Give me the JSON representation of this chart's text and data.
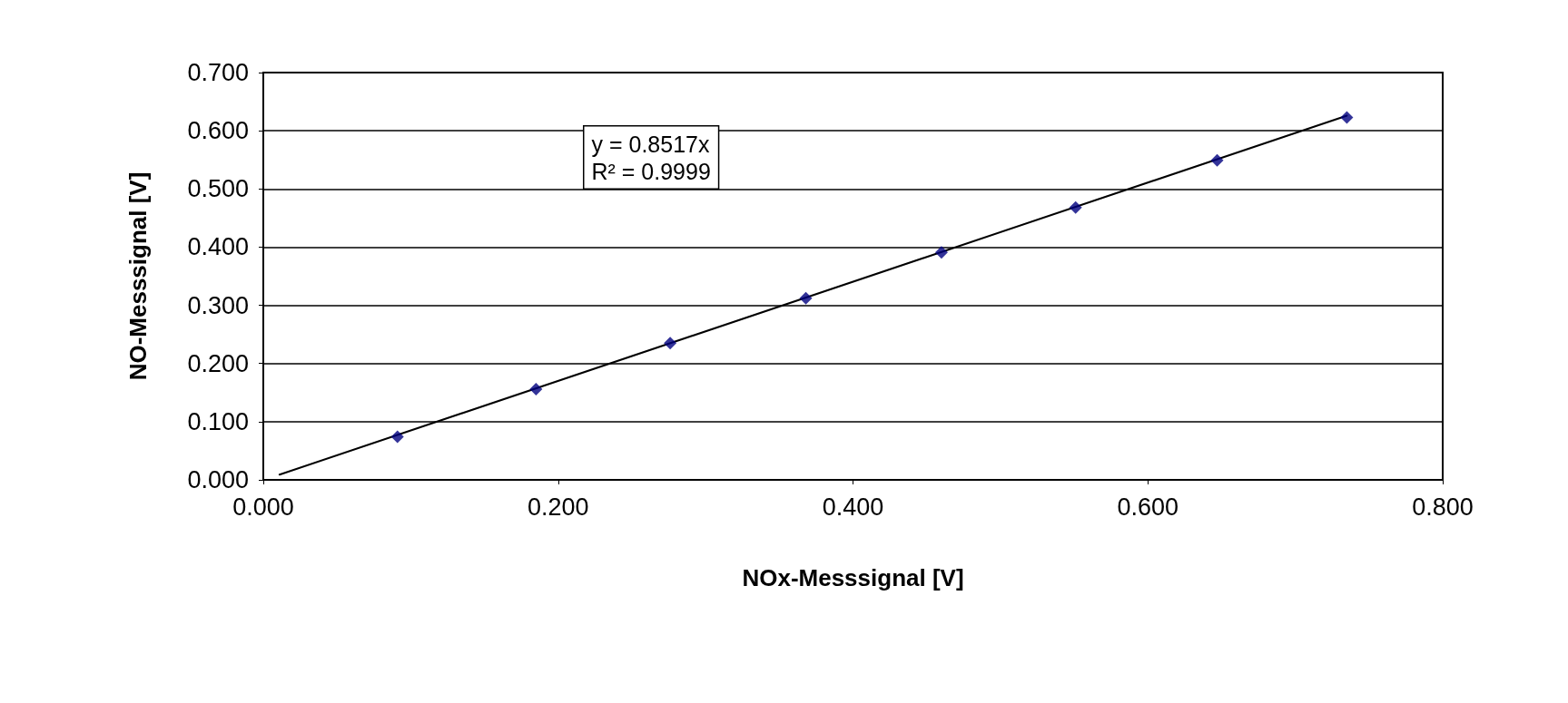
{
  "chart_data": {
    "type": "scatter",
    "xlabel": "NOx-Messsignal [V]",
    "ylabel": "NO-Messsignal [V]",
    "xlim": [
      0,
      0.8
    ],
    "ylim": [
      0,
      0.7
    ],
    "xticks": [
      {
        "value": 0,
        "label": "0.000"
      },
      {
        "value": 0.2,
        "label": "0.200"
      },
      {
        "value": 0.4,
        "label": "0.400"
      },
      {
        "value": 0.6,
        "label": "0.600"
      },
      {
        "value": 0.8,
        "label": "0.800"
      }
    ],
    "yticks": [
      {
        "value": 0,
        "label": "0.000"
      },
      {
        "value": 0.1,
        "label": "0.100"
      },
      {
        "value": 0.2,
        "label": "0.200"
      },
      {
        "value": 0.3,
        "label": "0.300"
      },
      {
        "value": 0.4,
        "label": "0.400"
      },
      {
        "value": 0.5,
        "label": "0.500"
      },
      {
        "value": 0.6,
        "label": "0.600"
      },
      {
        "value": 0.7,
        "label": "0.700"
      }
    ],
    "grid": "y",
    "annotations": [
      "y = 0.8517x\nR² = 0.9999"
    ],
    "series": [
      {
        "color": "#000080",
        "marker": "diamond",
        "x": [
          0.091,
          0.185,
          0.276,
          0.368,
          0.46,
          0.551,
          0.647,
          0.735
        ],
        "values": [
          0.074,
          0.156,
          0.235,
          0.312,
          0.391,
          0.468,
          0.549,
          0.623
        ]
      },
      {
        "type": "line",
        "color": "#000000",
        "marker": "none",
        "line_style": "solid",
        "x": [
          0.011,
          0.735
        ],
        "values": [
          0.009,
          0.626
        ]
      }
    ]
  }
}
